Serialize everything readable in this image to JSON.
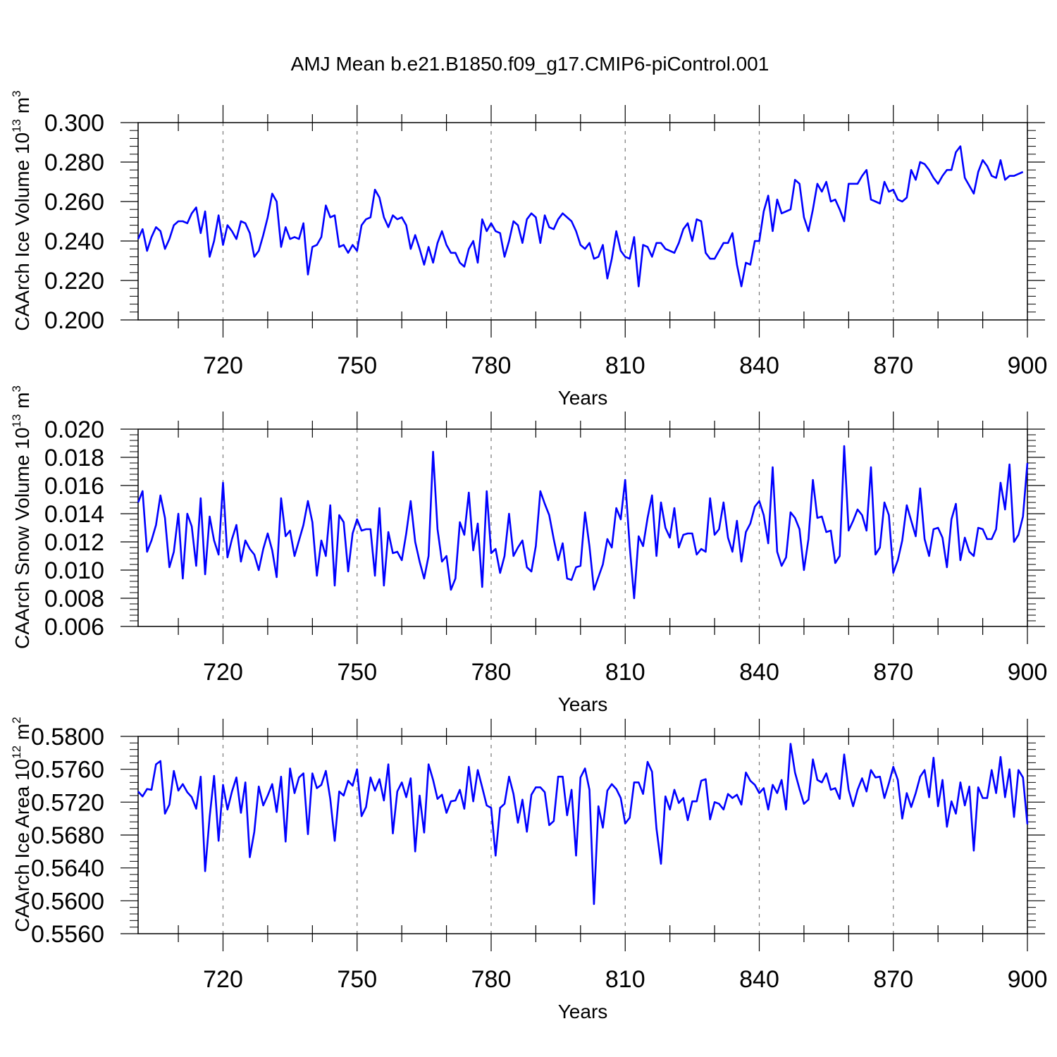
{
  "figure": {
    "title": "AMJ Mean b.e21.B1850.f09_g17.CMIP6-piControl.001",
    "line_color": "#0000ff",
    "grid_color": "#777777"
  },
  "chart_data": [
    {
      "type": "line",
      "ylabel_text": "CAArch Ice Volume 10",
      "ylabel_exp": "13",
      "ylabel_unit": " m",
      "ylabel_unit_exp": "3",
      "xlabel": "Years",
      "xlim": [
        701,
        900
      ],
      "ylim": [
        0.2,
        0.3
      ],
      "x_ticks": [
        720,
        750,
        780,
        810,
        840,
        870,
        900
      ],
      "x_tick_labels": [
        "720",
        "750",
        "780",
        "810",
        "840",
        "870",
        "900"
      ],
      "y_ticks": [
        0.2,
        0.22,
        0.24,
        0.26,
        0.28,
        0.3
      ],
      "y_tick_labels": [
        "0.200",
        "0.220",
        "0.240",
        "0.260",
        "0.280",
        "0.300"
      ],
      "x_start": 701,
      "series": [
        {
          "name": "Ice Volume",
          "values": [
            0.241,
            0.246,
            0.235,
            0.242,
            0.247,
            0.245,
            0.236,
            0.241,
            0.248,
            0.25,
            0.25,
            0.249,
            0.254,
            0.257,
            0.244,
            0.255,
            0.232,
            0.24,
            0.253,
            0.238,
            0.248,
            0.245,
            0.241,
            0.25,
            0.249,
            0.244,
            0.232,
            0.235,
            0.243,
            0.252,
            0.264,
            0.26,
            0.237,
            0.247,
            0.241,
            0.242,
            0.241,
            0.249,
            0.223,
            0.237,
            0.238,
            0.242,
            0.258,
            0.252,
            0.253,
            0.237,
            0.238,
            0.234,
            0.238,
            0.235,
            0.248,
            0.251,
            0.252,
            0.266,
            0.262,
            0.252,
            0.247,
            0.253,
            0.251,
            0.252,
            0.248,
            0.236,
            0.243,
            0.236,
            0.228,
            0.237,
            0.229,
            0.239,
            0.245,
            0.238,
            0.234,
            0.234,
            0.229,
            0.227,
            0.236,
            0.24,
            0.229,
            0.251,
            0.245,
            0.249,
            0.245,
            0.244,
            0.232,
            0.24,
            0.25,
            0.248,
            0.239,
            0.251,
            0.254,
            0.252,
            0.239,
            0.253,
            0.247,
            0.246,
            0.251,
            0.254,
            0.252,
            0.25,
            0.245,
            0.238,
            0.236,
            0.239,
            0.231,
            0.232,
            0.238,
            0.221,
            0.231,
            0.245,
            0.235,
            0.232,
            0.231,
            0.242,
            0.217,
            0.238,
            0.237,
            0.232,
            0.239,
            0.239,
            0.236,
            0.235,
            0.234,
            0.239,
            0.246,
            0.249,
            0.24,
            0.251,
            0.25,
            0.234,
            0.231,
            0.231,
            0.235,
            0.239,
            0.239,
            0.244,
            0.228,
            0.217,
            0.229,
            0.228,
            0.24,
            0.24,
            0.255,
            0.263,
            0.245,
            0.261,
            0.254,
            0.255,
            0.256,
            0.271,
            0.269,
            0.252,
            0.245,
            0.256,
            0.269,
            0.265,
            0.27,
            0.26,
            0.261,
            0.256,
            0.25,
            0.269,
            0.269,
            0.269,
            0.273,
            0.276,
            0.261,
            0.26,
            0.259,
            0.27,
            0.265,
            0.266,
            0.261,
            0.26,
            0.262,
            0.276,
            0.271,
            0.28,
            0.279,
            0.276,
            0.272,
            0.269,
            0.273,
            0.276,
            0.276,
            0.285,
            0.288,
            0.272,
            0.268,
            0.264,
            0.275,
            0.281,
            0.278,
            0.273,
            0.272,
            0.281,
            0.271,
            0.273,
            0.273,
            0.274,
            0.275
          ]
        }
      ]
    },
    {
      "type": "line",
      "ylabel_text": "CAArch Snow Volume 10",
      "ylabel_exp": "13",
      "ylabel_unit": " m",
      "ylabel_unit_exp": "3",
      "xlabel": "Years",
      "xlim": [
        701,
        900
      ],
      "ylim": [
        0.006,
        0.02
      ],
      "x_ticks": [
        720,
        750,
        780,
        810,
        840,
        870,
        900
      ],
      "x_tick_labels": [
        "720",
        "750",
        "780",
        "810",
        "840",
        "870",
        "900"
      ],
      "y_ticks": [
        0.006,
        0.008,
        0.01,
        0.012,
        0.014,
        0.016,
        0.018,
        0.02
      ],
      "y_tick_labels": [
        "0.006",
        "0.008",
        "0.010",
        "0.012",
        "0.014",
        "0.016",
        "0.018",
        "0.020"
      ],
      "x_start": 701,
      "series": [
        {
          "name": "Snow Volume",
          "values": [
            0.0148,
            0.0156,
            0.0113,
            0.0121,
            0.0132,
            0.0153,
            0.0137,
            0.0102,
            0.0113,
            0.014,
            0.0094,
            0.014,
            0.0131,
            0.0103,
            0.0151,
            0.0097,
            0.0138,
            0.0121,
            0.0111,
            0.0162,
            0.0109,
            0.0122,
            0.0132,
            0.0106,
            0.0121,
            0.0115,
            0.0111,
            0.01,
            0.0115,
            0.0126,
            0.0114,
            0.0095,
            0.0151,
            0.0124,
            0.0128,
            0.011,
            0.0121,
            0.0132,
            0.0149,
            0.0134,
            0.0096,
            0.0121,
            0.011,
            0.0146,
            0.0089,
            0.0139,
            0.0134,
            0.0099,
            0.0126,
            0.0136,
            0.0128,
            0.0129,
            0.0129,
            0.0096,
            0.0144,
            0.0089,
            0.0127,
            0.0112,
            0.0113,
            0.0107,
            0.0126,
            0.0149,
            0.012,
            0.0106,
            0.0094,
            0.011,
            0.0184,
            0.0129,
            0.0106,
            0.011,
            0.0086,
            0.0094,
            0.0134,
            0.0125,
            0.0155,
            0.0114,
            0.0133,
            0.0088,
            0.0156,
            0.0112,
            0.0115,
            0.0098,
            0.011,
            0.014,
            0.011,
            0.0116,
            0.0121,
            0.0102,
            0.0099,
            0.0117,
            0.0156,
            0.0147,
            0.0139,
            0.0122,
            0.0107,
            0.0119,
            0.0094,
            0.0093,
            0.0102,
            0.0103,
            0.0141,
            0.0117,
            0.0086,
            0.0095,
            0.0104,
            0.0122,
            0.0116,
            0.0144,
            0.0136,
            0.0164,
            0.0117,
            0.008,
            0.0124,
            0.0117,
            0.0137,
            0.0153,
            0.011,
            0.0148,
            0.013,
            0.0123,
            0.0144,
            0.0116,
            0.0125,
            0.0126,
            0.0126,
            0.0111,
            0.0115,
            0.0113,
            0.0151,
            0.0125,
            0.0129,
            0.0148,
            0.0123,
            0.0113,
            0.0135,
            0.0106,
            0.0127,
            0.0133,
            0.0145,
            0.0149,
            0.0139,
            0.0119,
            0.0173,
            0.0113,
            0.0103,
            0.0109,
            0.0141,
            0.0137,
            0.0129,
            0.01,
            0.0122,
            0.0164,
            0.0137,
            0.0138,
            0.0127,
            0.0128,
            0.0105,
            0.011,
            0.0188,
            0.0128,
            0.0135,
            0.0143,
            0.0139,
            0.0128,
            0.0173,
            0.0111,
            0.0116,
            0.0148,
            0.0139,
            0.0098,
            0.0107,
            0.0121,
            0.0146,
            0.0135,
            0.0124,
            0.0158,
            0.0122,
            0.011,
            0.0129,
            0.013,
            0.0123,
            0.0102,
            0.0136,
            0.0147,
            0.0107,
            0.0123,
            0.0113,
            0.011,
            0.013,
            0.0129,
            0.0122,
            0.0122,
            0.0129,
            0.0162,
            0.0143,
            0.0175,
            0.012,
            0.0125,
            0.0138,
            0.0176
          ]
        }
      ]
    },
    {
      "type": "line",
      "ylabel_text": "CAArch Ice Area 10",
      "ylabel_exp": "12",
      "ylabel_unit": " m",
      "ylabel_unit_exp": "2",
      "xlabel": "Years",
      "xlim": [
        701,
        900
      ],
      "ylim": [
        0.556,
        0.58
      ],
      "x_ticks": [
        720,
        750,
        780,
        810,
        840,
        870,
        900
      ],
      "x_tick_labels": [
        "720",
        "750",
        "780",
        "810",
        "840",
        "870",
        "900"
      ],
      "y_ticks": [
        0.556,
        0.56,
        0.564,
        0.568,
        0.572,
        0.576,
        0.58
      ],
      "y_tick_labels": [
        "0.5560",
        "0.5600",
        "0.5640",
        "0.5680",
        "0.5720",
        "0.5760",
        "0.5800"
      ],
      "x_start": 701,
      "series": [
        {
          "name": "Ice Area",
          "values": [
            0.5733,
            0.5727,
            0.5736,
            0.5735,
            0.5766,
            0.577,
            0.5706,
            0.5717,
            0.5758,
            0.5734,
            0.5742,
            0.5732,
            0.5726,
            0.5712,
            0.5751,
            0.5636,
            0.5702,
            0.5752,
            0.5673,
            0.5741,
            0.5711,
            0.5733,
            0.575,
            0.5707,
            0.5744,
            0.5653,
            0.5684,
            0.5739,
            0.5716,
            0.5728,
            0.5742,
            0.5708,
            0.5751,
            0.5672,
            0.5761,
            0.5731,
            0.575,
            0.5755,
            0.5681,
            0.5755,
            0.5737,
            0.5741,
            0.5758,
            0.5724,
            0.5673,
            0.5733,
            0.5728,
            0.5746,
            0.574,
            0.576,
            0.5703,
            0.5714,
            0.575,
            0.5734,
            0.5748,
            0.5722,
            0.5766,
            0.5682,
            0.5733,
            0.5744,
            0.5726,
            0.5749,
            0.566,
            0.5728,
            0.5683,
            0.5766,
            0.5747,
            0.5724,
            0.5729,
            0.5707,
            0.5721,
            0.5722,
            0.5735,
            0.5712,
            0.5763,
            0.5721,
            0.5759,
            0.5738,
            0.5716,
            0.5713,
            0.5655,
            0.5713,
            0.5718,
            0.5751,
            0.573,
            0.5695,
            0.5723,
            0.5684,
            0.5729,
            0.5738,
            0.5738,
            0.5732,
            0.5692,
            0.5697,
            0.5751,
            0.5751,
            0.5704,
            0.5735,
            0.5655,
            0.575,
            0.5761,
            0.5735,
            0.5596,
            0.5715,
            0.5689,
            0.5734,
            0.5742,
            0.5736,
            0.5725,
            0.5694,
            0.5701,
            0.5744,
            0.5744,
            0.573,
            0.5769,
            0.5757,
            0.5688,
            0.5645,
            0.5727,
            0.5711,
            0.5735,
            0.5719,
            0.5725,
            0.5698,
            0.5721,
            0.5721,
            0.5746,
            0.5748,
            0.5699,
            0.572,
            0.5718,
            0.5711,
            0.573,
            0.5725,
            0.5729,
            0.5717,
            0.5756,
            0.5746,
            0.5741,
            0.5731,
            0.5737,
            0.5711,
            0.5741,
            0.5731,
            0.5747,
            0.5711,
            0.5791,
            0.5756,
            0.5736,
            0.5718,
            0.5723,
            0.5772,
            0.5747,
            0.5744,
            0.5755,
            0.5735,
            0.5737,
            0.5724,
            0.5778,
            0.5735,
            0.5715,
            0.5735,
            0.5749,
            0.5733,
            0.5759,
            0.575,
            0.5751,
            0.5725,
            0.5743,
            0.5763,
            0.5747,
            0.57,
            0.5731,
            0.5714,
            0.5731,
            0.5751,
            0.5759,
            0.5726,
            0.5774,
            0.5715,
            0.5747,
            0.569,
            0.5721,
            0.5706,
            0.5744,
            0.5716,
            0.5739,
            0.5661,
            0.5738,
            0.5725,
            0.5725,
            0.5759,
            0.5731,
            0.5775,
            0.5726,
            0.576,
            0.5702,
            0.5759,
            0.575,
            0.5693
          ]
        }
      ]
    }
  ]
}
